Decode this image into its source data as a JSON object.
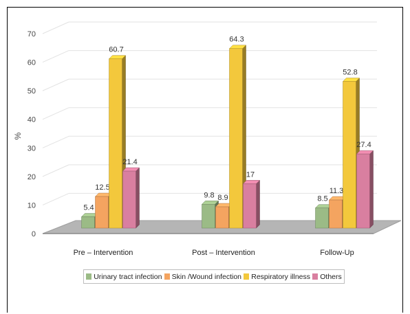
{
  "chart_data": {
    "type": "bar",
    "title": "",
    "xlabel": "",
    "ylabel": "%",
    "ylim": [
      0,
      70
    ],
    "yticks": [
      0,
      10,
      20,
      30,
      40,
      50,
      60,
      70
    ],
    "grid": true,
    "legend_position": "bottom",
    "categories": [
      "Pre – Intervention",
      "Post – Intervention",
      "Follow-Up"
    ],
    "series": [
      {
        "name": "Urinary tract infection",
        "color": "#9bbb86",
        "values": [
          5.4,
          9.8,
          8.5
        ]
      },
      {
        "name": "Skin /Wound infection",
        "color": "#f4a460",
        "values": [
          12.5,
          8.9,
          11.3
        ]
      },
      {
        "name": "Respiratory illness",
        "color": "#f3c83c",
        "values": [
          60.7,
          64.3,
          52.8
        ]
      },
      {
        "name": "Others",
        "color": "#d97fa0",
        "values": [
          21.4,
          17,
          27.4
        ]
      }
    ]
  }
}
